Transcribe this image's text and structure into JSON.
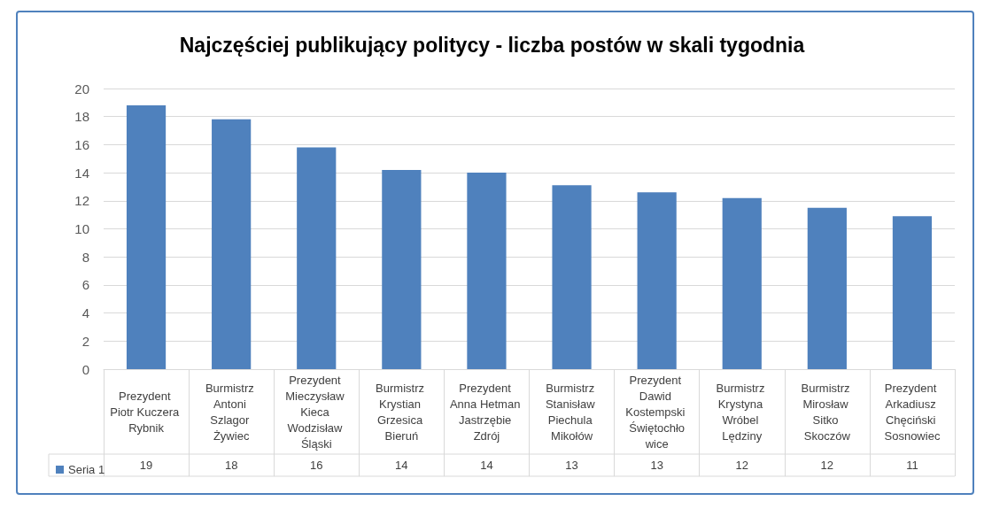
{
  "chart_data": {
    "type": "bar",
    "title": "Najczęściej publikujący politycy - liczba postów w skali tygodnia",
    "categories": [
      "Prezydent Piotr Kuczera Rybnik",
      "Burmistrz Antoni Szlagor Żywiec",
      "Prezydent Mieczysław Kieca Wodzisław Śląski",
      "Burmistrz Krystian Grzesica Bieruń",
      "Prezydent Anna Hetman Jastrzębie Zdrój",
      "Burmistrz Stanisław Piechula Mikołów",
      "Prezydent Dawid Kostempski Świętochłowice",
      "Burmistrz Krystyna Wróbel Lędziny",
      "Burmistrz Mirosław Sitko Skoczów",
      "Prezydent Arkadiusz Chęciński Sosnowiec"
    ],
    "series": [
      {
        "name": "Seria 1",
        "color": "#4f81bd",
        "values": [
          18.8,
          17.8,
          15.8,
          14.2,
          14.0,
          13.1,
          12.6,
          12.2,
          11.5,
          10.9
        ],
        "value_labels": [
          "19",
          "18",
          "16",
          "14",
          "14",
          "13",
          "13",
          "12",
          "12",
          "11"
        ]
      }
    ],
    "ylim": [
      0,
      20
    ],
    "yticks": [
      0,
      2,
      4,
      6,
      8,
      10,
      12,
      14,
      16,
      18,
      20
    ],
    "grid": "y",
    "legend": "bottom left"
  }
}
